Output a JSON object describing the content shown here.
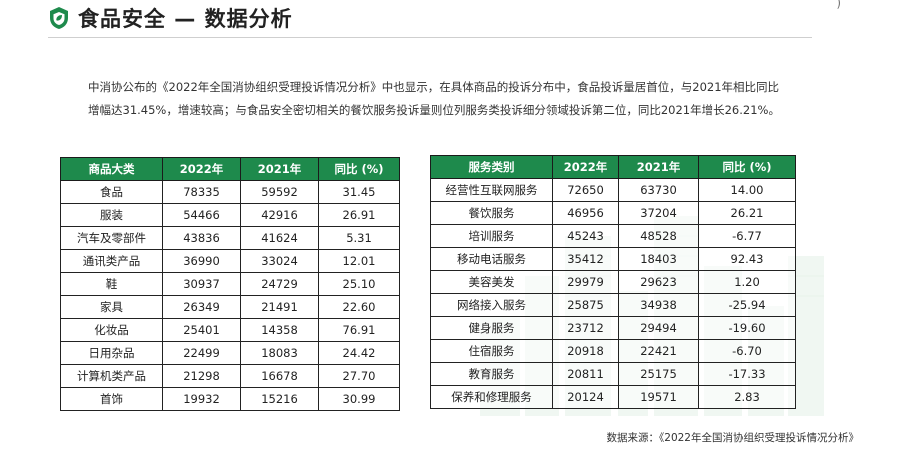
{
  "header": {
    "title": "食品安全 — 数据分析"
  },
  "intro": "中消协公布的《2022年全国消协组织受理投诉情况分析》中也显示，在具体商品的投诉分布中，食品投诉量居首位，与2021年相比同比增幅达31.45%，增速较高；与食品安全密切相关的餐饮服务投诉量则位列服务类投诉细分领域投诉第二位，同比2021年增长26.21%。",
  "table_goods": {
    "headers": [
      "商品大类",
      "2022年",
      "2021年",
      "同比 (%)"
    ],
    "rows": [
      [
        "食品",
        "78335",
        "59592",
        "31.45"
      ],
      [
        "服装",
        "54466",
        "42916",
        "26.91"
      ],
      [
        "汽车及零部件",
        "43836",
        "41624",
        "5.31"
      ],
      [
        "通讯类产品",
        "36990",
        "33024",
        "12.01"
      ],
      [
        "鞋",
        "30937",
        "24729",
        "25.10"
      ],
      [
        "家具",
        "26349",
        "21491",
        "22.60"
      ],
      [
        "化妆品",
        "25401",
        "14358",
        "76.91"
      ],
      [
        "日用杂品",
        "22499",
        "18083",
        "24.42"
      ],
      [
        "计算机类产品",
        "21298",
        "16678",
        "27.70"
      ],
      [
        "首饰",
        "19932",
        "15216",
        "30.99"
      ]
    ]
  },
  "table_services": {
    "headers": [
      "服务类别",
      "2022年",
      "2021年",
      "同比 (%)"
    ],
    "rows": [
      [
        "经营性互联网服务",
        "72650",
        "63730",
        "14.00"
      ],
      [
        "餐饮服务",
        "46956",
        "37204",
        "26.21"
      ],
      [
        "培训服务",
        "45243",
        "48528",
        "-6.77"
      ],
      [
        "移动电话服务",
        "35412",
        "18403",
        "92.43"
      ],
      [
        "美容美发",
        "29979",
        "29623",
        "1.20"
      ],
      [
        "网络接入服务",
        "25875",
        "34938",
        "-25.94"
      ],
      [
        "健身服务",
        "23712",
        "29494",
        "-19.60"
      ],
      [
        "住宿服务",
        "20918",
        "22421",
        "-6.70"
      ],
      [
        "教育服务",
        "20811",
        "25175",
        "-17.33"
      ],
      [
        "保养和修理服务",
        "20124",
        "19571",
        "2.83"
      ]
    ]
  },
  "source": "数据来源：《2022年全国消协组织受理投诉情况分析》",
  "colors": {
    "accent": "#1e8a4c",
    "border": "#222222"
  }
}
